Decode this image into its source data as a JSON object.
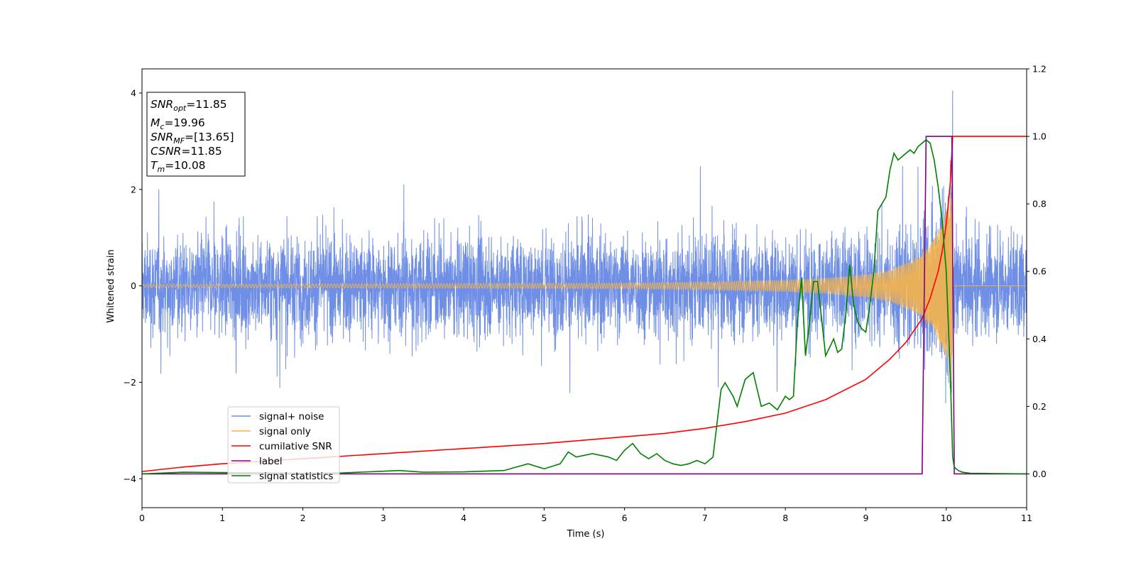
{
  "chart_data": {
    "type": "line",
    "xlabel": "Time (s)",
    "ylabel": "Whitened strain",
    "xlim": [
      0,
      11
    ],
    "ylim": [
      -4.6,
      4.5
    ],
    "y2lim": [
      -0.1,
      1.2
    ],
    "x_ticks": [
      "0",
      "1",
      "2",
      "3",
      "4",
      "5",
      "6",
      "7",
      "8",
      "9",
      "10",
      "11"
    ],
    "y_ticks": [
      "4",
      "2",
      "0",
      "−2",
      "−4"
    ],
    "y2_ticks": [
      "1.2",
      "1.0",
      "0.8",
      "0.6",
      "0.4",
      "0.2",
      "0.0"
    ],
    "grid": false,
    "legend": {
      "position": "lower-left",
      "entries": [
        {
          "label": "signal+ noise",
          "color": "#6f8fe6"
        },
        {
          "label": "signal only",
          "color": "#f5b44a"
        },
        {
          "label": "cumilative SNR",
          "color": "#ff0000"
        },
        {
          "label": "label",
          "color": "#800080"
        },
        {
          "label": "signal statistics",
          "color": "#008000"
        }
      ]
    },
    "info_box": {
      "snr_opt": {
        "sym": "SNR",
        "sub": "opt",
        "value": "=11.85"
      },
      "mc": {
        "sym": "M",
        "sub": "c",
        "value": "=19.96"
      },
      "snr_mf": {
        "sym": "SNR",
        "sub": "MF",
        "value": "=[13.65]"
      },
      "csnr": {
        "sym": "CSNR",
        "sub": "",
        "value": "=11.85"
      },
      "tm": {
        "sym": "T",
        "sub": "m",
        "value": "=10.08"
      }
    },
    "series": [
      {
        "name": "signal+ noise",
        "axis": "left",
        "noise_envelope": 2.2,
        "merger_time": 10.08,
        "peak": 4.05
      },
      {
        "name": "signal only",
        "axis": "left",
        "envelope": {
          "x": [
            0,
            2,
            4,
            6,
            7,
            8,
            8.5,
            9,
            9.3,
            9.6,
            9.8,
            9.95,
            10.05,
            10.08,
            10.1,
            11
          ],
          "y": [
            0.03,
            0.04,
            0.05,
            0.06,
            0.08,
            0.12,
            0.16,
            0.24,
            0.33,
            0.55,
            0.85,
            1.3,
            1.9,
            2.1,
            0,
            0
          ]
        }
      },
      {
        "name": "cumilative SNR",
        "axis": "right",
        "x": [
          0,
          0.5,
          1,
          2,
          3,
          4,
          5,
          6,
          6.5,
          7,
          7.5,
          8,
          8.5,
          9,
          9.3,
          9.5,
          9.7,
          9.8,
          9.9,
          9.95,
          10.0,
          10.05,
          10.08,
          11
        ],
        "y": [
          0.007,
          0.02,
          0.03,
          0.045,
          0.06,
          0.075,
          0.09,
          0.11,
          0.12,
          0.135,
          0.155,
          0.18,
          0.22,
          0.28,
          0.34,
          0.39,
          0.46,
          0.52,
          0.6,
          0.66,
          0.74,
          0.86,
          1.0,
          1.0
        ]
      },
      {
        "name": "label",
        "axis": "right",
        "x": [
          0,
          9.7,
          9.75,
          10.07,
          10.1,
          11
        ],
        "y": [
          0,
          0,
          1.0,
          1.0,
          0,
          0
        ]
      },
      {
        "name": "signal statistics",
        "axis": "right",
        "x": [
          0,
          0.5,
          1,
          1.5,
          2,
          2.5,
          3,
          3.2,
          3.5,
          4,
          4.5,
          4.8,
          5,
          5.2,
          5.3,
          5.4,
          5.6,
          5.8,
          5.9,
          6,
          6.1,
          6.2,
          6.3,
          6.4,
          6.5,
          6.6,
          6.7,
          6.8,
          6.9,
          7,
          7.1,
          7.2,
          7.25,
          7.3,
          7.35,
          7.4,
          7.5,
          7.6,
          7.7,
          7.8,
          7.9,
          8.0,
          8.05,
          8.1,
          8.15,
          8.2,
          8.25,
          8.3,
          8.35,
          8.4,
          8.5,
          8.6,
          8.65,
          8.7,
          8.75,
          8.8,
          8.85,
          8.9,
          8.95,
          9.0,
          9.05,
          9.1,
          9.15,
          9.2,
          9.25,
          9.3,
          9.35,
          9.4,
          9.45,
          9.5,
          9.55,
          9.6,
          9.65,
          9.7,
          9.75,
          9.8,
          9.85,
          9.9,
          9.95,
          10.0,
          10.05,
          10.08,
          10.1,
          10.15,
          10.2,
          10.3,
          11
        ],
        "y": [
          0.0,
          0.005,
          0.004,
          0.003,
          0.002,
          0.003,
          0.008,
          0.01,
          0.005,
          0.006,
          0.01,
          0.03,
          0.015,
          0.03,
          0.065,
          0.05,
          0.06,
          0.05,
          0.04,
          0.07,
          0.09,
          0.06,
          0.045,
          0.06,
          0.04,
          0.03,
          0.025,
          0.03,
          0.04,
          0.03,
          0.05,
          0.25,
          0.27,
          0.25,
          0.23,
          0.2,
          0.28,
          0.3,
          0.2,
          0.21,
          0.19,
          0.23,
          0.22,
          0.23,
          0.45,
          0.58,
          0.35,
          0.45,
          0.57,
          0.57,
          0.35,
          0.4,
          0.36,
          0.37,
          0.47,
          0.62,
          0.5,
          0.45,
          0.43,
          0.42,
          0.5,
          0.6,
          0.78,
          0.8,
          0.82,
          0.9,
          0.95,
          0.93,
          0.94,
          0.95,
          0.96,
          0.95,
          0.97,
          0.98,
          0.99,
          0.98,
          0.93,
          0.85,
          0.75,
          0.6,
          0.3,
          0.05,
          0.02,
          0.01,
          0.005,
          0.002,
          0.0
        ]
      }
    ]
  }
}
